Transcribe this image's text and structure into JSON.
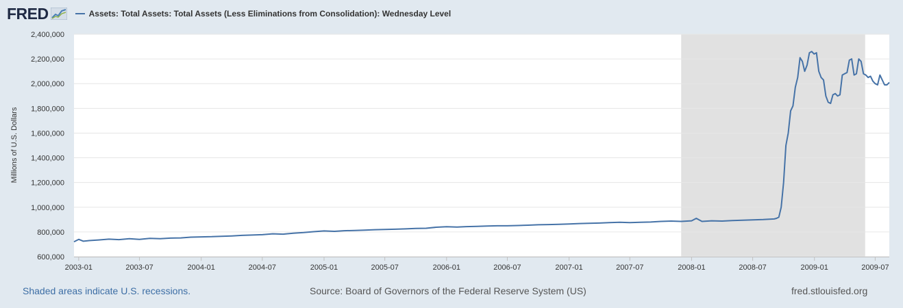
{
  "logo": {
    "text": "FRED"
  },
  "legend": {
    "label": "Assets: Total Assets: Total Assets (Less Eliminations from Consolidation): Wednesday Level"
  },
  "footer": {
    "note": "Shaded areas indicate U.S. recessions.",
    "source": "Source: Board of Governors of the Federal Reserve System (US)",
    "site": "fred.stlouisfed.org"
  },
  "colors": {
    "series": "#4572a7",
    "recession": "#e1e1e1",
    "background": "#e1e9f0",
    "plot_background": "#ffffff"
  },
  "chart_data": {
    "type": "line",
    "title": "",
    "xlabel": "",
    "ylabel": "Millions of U.S. Dollars",
    "ylim": [
      600000,
      2400000
    ],
    "xlim": [
      "2002-12-18",
      "2009-08-12"
    ],
    "yticks": [
      600000,
      800000,
      1000000,
      1200000,
      1400000,
      1600000,
      1800000,
      2000000,
      2200000,
      2400000
    ],
    "ytick_labels": [
      "600,000",
      "800,000",
      "1,000,000",
      "1,200,000",
      "1,400,000",
      "1,600,000",
      "1,800,000",
      "2,000,000",
      "2,200,000",
      "2,400,000"
    ],
    "xticks": [
      "2003-01",
      "2003-07",
      "2004-01",
      "2004-07",
      "2005-01",
      "2005-07",
      "2006-01",
      "2006-07",
      "2007-01",
      "2007-07",
      "2008-01",
      "2008-07",
      "2009-01",
      "2009-07"
    ],
    "grid": true,
    "legend": "top-left",
    "recessions": [
      {
        "start": "2007-12-01",
        "end": "2009-06-01"
      }
    ],
    "series": [
      {
        "name": "Assets: Total Assets: Total Assets (Less Eliminations from Consolidation): Wednesday Level",
        "x": [
          "2002-12-18",
          "2003-01-01",
          "2003-01-15",
          "2003-02-01",
          "2003-03-01",
          "2003-04-01",
          "2003-05-01",
          "2003-06-01",
          "2003-07-01",
          "2003-08-01",
          "2003-09-01",
          "2003-10-01",
          "2003-11-01",
          "2003-12-01",
          "2004-01-01",
          "2004-02-01",
          "2004-03-01",
          "2004-04-01",
          "2004-05-01",
          "2004-06-01",
          "2004-07-01",
          "2004-08-01",
          "2004-09-01",
          "2004-10-01",
          "2004-11-01",
          "2004-12-01",
          "2005-01-01",
          "2005-02-01",
          "2005-03-01",
          "2005-04-01",
          "2005-05-01",
          "2005-06-01",
          "2005-07-01",
          "2005-08-01",
          "2005-09-01",
          "2005-10-01",
          "2005-11-01",
          "2005-12-01",
          "2006-01-01",
          "2006-02-01",
          "2006-03-01",
          "2006-04-01",
          "2006-05-01",
          "2006-06-01",
          "2006-07-01",
          "2006-08-01",
          "2006-09-01",
          "2006-10-01",
          "2006-11-01",
          "2006-12-01",
          "2007-01-01",
          "2007-02-01",
          "2007-03-01",
          "2007-04-01",
          "2007-05-01",
          "2007-06-01",
          "2007-07-01",
          "2007-08-01",
          "2007-09-01",
          "2007-10-01",
          "2007-11-01",
          "2007-12-01",
          "2008-01-01",
          "2008-01-15",
          "2008-02-01",
          "2008-03-01",
          "2008-04-01",
          "2008-05-01",
          "2008-06-01",
          "2008-07-01",
          "2008-08-01",
          "2008-09-03",
          "2008-09-10",
          "2008-09-17",
          "2008-09-24",
          "2008-10-01",
          "2008-10-08",
          "2008-10-15",
          "2008-10-22",
          "2008-10-29",
          "2008-11-05",
          "2008-11-12",
          "2008-11-19",
          "2008-11-26",
          "2008-12-03",
          "2008-12-10",
          "2008-12-17",
          "2008-12-24",
          "2008-12-31",
          "2009-01-07",
          "2009-01-14",
          "2009-01-21",
          "2009-01-28",
          "2009-02-04",
          "2009-02-11",
          "2009-02-18",
          "2009-02-25",
          "2009-03-04",
          "2009-03-11",
          "2009-03-18",
          "2009-03-25",
          "2009-04-01",
          "2009-04-08",
          "2009-04-15",
          "2009-04-22",
          "2009-04-29",
          "2009-05-06",
          "2009-05-13",
          "2009-05-20",
          "2009-05-27",
          "2009-06-03",
          "2009-06-10",
          "2009-06-17",
          "2009-06-24",
          "2009-07-01",
          "2009-07-08",
          "2009-07-15",
          "2009-07-22",
          "2009-07-29",
          "2009-08-05",
          "2009-08-12"
        ],
        "values": [
          720000,
          740000,
          725000,
          730000,
          735000,
          742000,
          738000,
          745000,
          740000,
          748000,
          745000,
          750000,
          752000,
          758000,
          760000,
          762000,
          765000,
          768000,
          772000,
          775000,
          778000,
          785000,
          782000,
          790000,
          795000,
          802000,
          808000,
          805000,
          810000,
          812000,
          815000,
          818000,
          820000,
          822000,
          825000,
          828000,
          830000,
          838000,
          842000,
          840000,
          843000,
          845000,
          848000,
          850000,
          850000,
          852000,
          855000,
          858000,
          860000,
          862000,
          865000,
          868000,
          870000,
          872000,
          875000,
          878000,
          875000,
          878000,
          880000,
          885000,
          888000,
          885000,
          890000,
          910000,
          885000,
          890000,
          888000,
          892000,
          895000,
          898000,
          900000,
          905000,
          910000,
          920000,
          1000000,
          1200000,
          1500000,
          1600000,
          1780000,
          1820000,
          1970000,
          2050000,
          2210000,
          2180000,
          2100000,
          2150000,
          2250000,
          2260000,
          2240000,
          2250000,
          2100000,
          2050000,
          2030000,
          1900000,
          1850000,
          1840000,
          1910000,
          1920000,
          1900000,
          1910000,
          2070000,
          2080000,
          2090000,
          2190000,
          2200000,
          2070000,
          2080000,
          2200000,
          2180000,
          2080000,
          2070000,
          2050000,
          2060000,
          2020000,
          2000000,
          1990000,
          2070000,
          2030000,
          1990000,
          1990000,
          2010000
        ]
      }
    ]
  }
}
